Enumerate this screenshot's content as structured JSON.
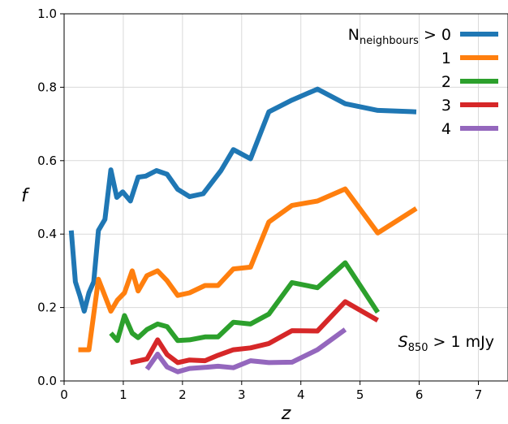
{
  "chart_data": {
    "type": "line",
    "xlabel": "z",
    "ylabel": "f",
    "xlim": [
      0,
      7.5
    ],
    "ylim": [
      0,
      1.0
    ],
    "x_ticks": [
      "0",
      "1",
      "2",
      "3",
      "4",
      "5",
      "6",
      "7"
    ],
    "y_ticks": [
      "0.0",
      "0.2",
      "0.4",
      "0.6",
      "0.8",
      "1.0"
    ],
    "grid": true,
    "legend_position": "top-right",
    "legend_title_main": "N",
    "legend_title_sub": "neighbours",
    "legend_title_suffix": " > ",
    "annotation": {
      "symbol": "S",
      "sub": "850",
      "text": " > 1 mJy"
    },
    "series": [
      {
        "name": "0",
        "color": "#1f77b4",
        "points": [
          [
            0.12,
            0.41
          ],
          [
            0.19,
            0.27
          ],
          [
            0.27,
            0.23
          ],
          [
            0.34,
            0.19
          ],
          [
            0.42,
            0.24
          ],
          [
            0.5,
            0.27
          ],
          [
            0.58,
            0.41
          ],
          [
            0.69,
            0.44
          ],
          [
            0.79,
            0.575
          ],
          [
            0.89,
            0.5
          ],
          [
            0.99,
            0.515
          ],
          [
            1.12,
            0.49
          ],
          [
            1.25,
            0.555
          ],
          [
            1.38,
            0.558
          ],
          [
            1.56,
            0.573
          ],
          [
            1.74,
            0.563
          ],
          [
            1.92,
            0.522
          ],
          [
            2.12,
            0.502
          ],
          [
            2.35,
            0.51
          ],
          [
            2.65,
            0.573
          ],
          [
            2.86,
            0.63
          ],
          [
            3.15,
            0.605
          ],
          [
            3.46,
            0.733
          ],
          [
            3.85,
            0.765
          ],
          [
            4.28,
            0.795
          ],
          [
            4.75,
            0.755
          ],
          [
            5.3,
            0.737
          ],
          [
            5.95,
            0.733
          ]
        ]
      },
      {
        "name": "1",
        "color": "#ff7f0e",
        "points": [
          [
            0.24,
            0.085
          ],
          [
            0.42,
            0.085
          ],
          [
            0.58,
            0.277
          ],
          [
            0.79,
            0.19
          ],
          [
            0.9,
            0.22
          ],
          [
            1.02,
            0.24
          ],
          [
            1.15,
            0.3
          ],
          [
            1.25,
            0.245
          ],
          [
            1.4,
            0.287
          ],
          [
            1.58,
            0.3
          ],
          [
            1.74,
            0.273
          ],
          [
            1.92,
            0.233
          ],
          [
            2.12,
            0.24
          ],
          [
            2.38,
            0.26
          ],
          [
            2.6,
            0.26
          ],
          [
            2.86,
            0.305
          ],
          [
            3.15,
            0.31
          ],
          [
            3.46,
            0.433
          ],
          [
            3.85,
            0.478
          ],
          [
            4.28,
            0.49
          ],
          [
            4.75,
            0.523
          ],
          [
            5.3,
            0.403
          ],
          [
            5.95,
            0.47
          ]
        ]
      },
      {
        "name": "2",
        "color": "#2ca02c",
        "points": [
          [
            0.79,
            0.13
          ],
          [
            0.9,
            0.11
          ],
          [
            1.02,
            0.178
          ],
          [
            1.15,
            0.13
          ],
          [
            1.25,
            0.118
          ],
          [
            1.4,
            0.14
          ],
          [
            1.58,
            0.155
          ],
          [
            1.74,
            0.148
          ],
          [
            1.92,
            0.11
          ],
          [
            2.12,
            0.112
          ],
          [
            2.38,
            0.12
          ],
          [
            2.6,
            0.12
          ],
          [
            2.86,
            0.16
          ],
          [
            3.15,
            0.155
          ],
          [
            3.46,
            0.182
          ],
          [
            3.85,
            0.268
          ],
          [
            4.28,
            0.254
          ],
          [
            4.75,
            0.322
          ],
          [
            5.3,
            0.187
          ]
        ]
      },
      {
        "name": "3",
        "color": "#d62728",
        "points": [
          [
            1.12,
            0.05
          ],
          [
            1.4,
            0.06
          ],
          [
            1.58,
            0.112
          ],
          [
            1.74,
            0.072
          ],
          [
            1.92,
            0.05
          ],
          [
            2.12,
            0.057
          ],
          [
            2.38,
            0.055
          ],
          [
            2.6,
            0.07
          ],
          [
            2.86,
            0.085
          ],
          [
            3.15,
            0.09
          ],
          [
            3.46,
            0.102
          ],
          [
            3.85,
            0.137
          ],
          [
            4.28,
            0.136
          ],
          [
            4.75,
            0.216
          ],
          [
            5.3,
            0.165
          ]
        ]
      },
      {
        "name": "4",
        "color": "#9467bd",
        "points": [
          [
            1.4,
            0.032
          ],
          [
            1.58,
            0.073
          ],
          [
            1.74,
            0.038
          ],
          [
            1.92,
            0.025
          ],
          [
            2.12,
            0.034
          ],
          [
            2.38,
            0.037
          ],
          [
            2.6,
            0.04
          ],
          [
            2.86,
            0.036
          ],
          [
            3.15,
            0.055
          ],
          [
            3.46,
            0.05
          ],
          [
            3.85,
            0.051
          ],
          [
            4.28,
            0.085
          ],
          [
            4.75,
            0.14
          ]
        ]
      }
    ]
  }
}
